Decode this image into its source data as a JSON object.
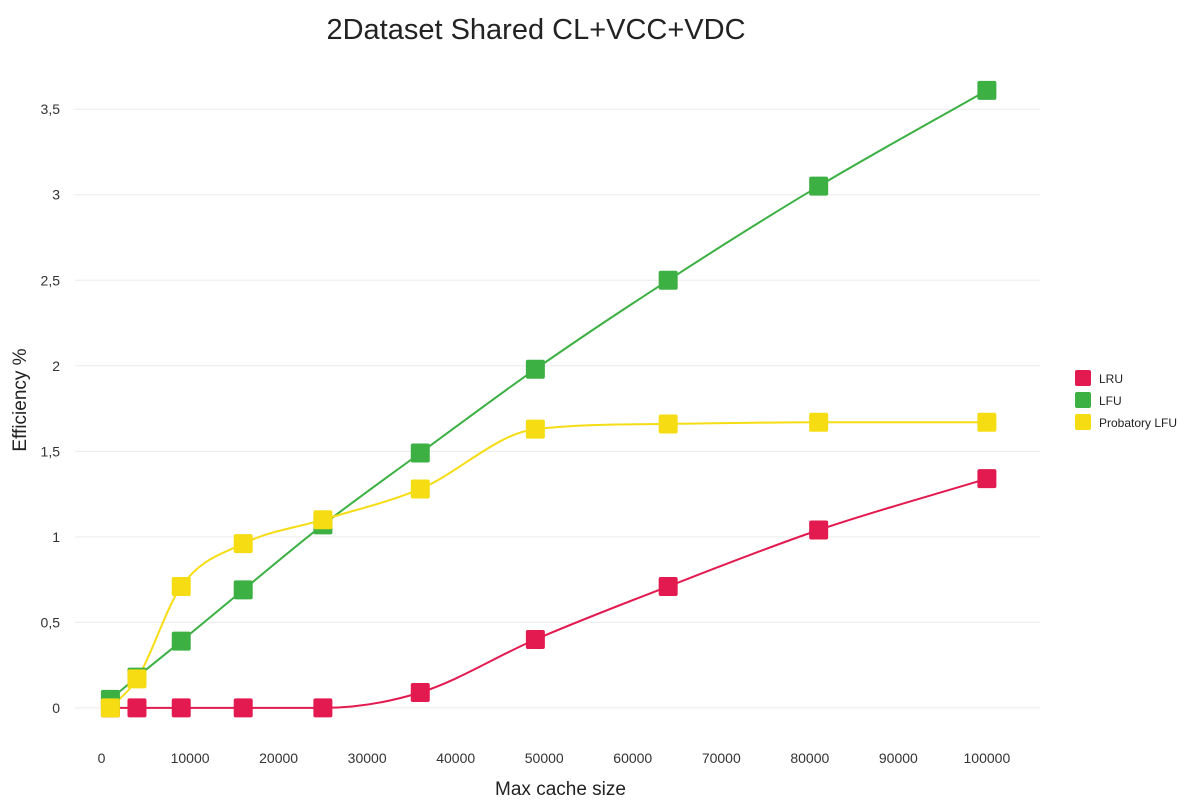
{
  "chart_data": {
    "type": "line",
    "title": "2Dataset Shared CL+VCC+VDC",
    "xlabel": "Max cache size",
    "ylabel": "Efficiency %",
    "xlim": [
      -3000,
      106000
    ],
    "ylim": [
      -0.1,
      3.7
    ],
    "x_ticks": [
      0,
      10000,
      20000,
      30000,
      40000,
      50000,
      60000,
      70000,
      80000,
      90000,
      100000
    ],
    "x_tick_labels": [
      "0",
      "10000",
      "20000",
      "30000",
      "40000",
      "50000",
      "60000",
      "70000",
      "80000",
      "90000",
      "100000"
    ],
    "y_ticks": [
      0,
      0.5,
      1,
      1.5,
      2,
      2.5,
      3,
      3.5
    ],
    "y_tick_labels": [
      "0",
      "0,5",
      "1",
      "1,5",
      "2",
      "2,5",
      "3",
      "3,5"
    ],
    "grid": true,
    "legend_position": "right",
    "series": [
      {
        "name": "LRU",
        "color": "#e31a4f",
        "points": [
          [
            1000,
            0
          ],
          [
            4000,
            0
          ],
          [
            9000,
            0
          ],
          [
            16000,
            0
          ],
          [
            25000,
            0
          ],
          [
            36000,
            0.09
          ],
          [
            49000,
            0.4
          ],
          [
            64000,
            0.71
          ],
          [
            81000,
            1.04
          ],
          [
            100000,
            1.34
          ]
        ]
      },
      {
        "name": "LFU",
        "color": "#3cb043",
        "points": [
          [
            1000,
            0.05
          ],
          [
            4000,
            0.18
          ],
          [
            9000,
            0.39
          ],
          [
            16000,
            0.69
          ],
          [
            25000,
            1.07
          ],
          [
            36000,
            1.49
          ],
          [
            49000,
            1.98
          ],
          [
            64000,
            2.5
          ],
          [
            81000,
            3.05
          ],
          [
            100000,
            3.61
          ]
        ]
      },
      {
        "name": "Probatory LFU",
        "color": "#f6dd13",
        "points": [
          [
            1000,
            0
          ],
          [
            4000,
            0.17
          ],
          [
            9000,
            0.71
          ],
          [
            16000,
            0.96
          ],
          [
            25000,
            1.1
          ],
          [
            36000,
            1.28
          ],
          [
            49000,
            1.63
          ],
          [
            64000,
            1.66
          ],
          [
            81000,
            1.67
          ],
          [
            100000,
            1.67
          ]
        ]
      }
    ]
  }
}
